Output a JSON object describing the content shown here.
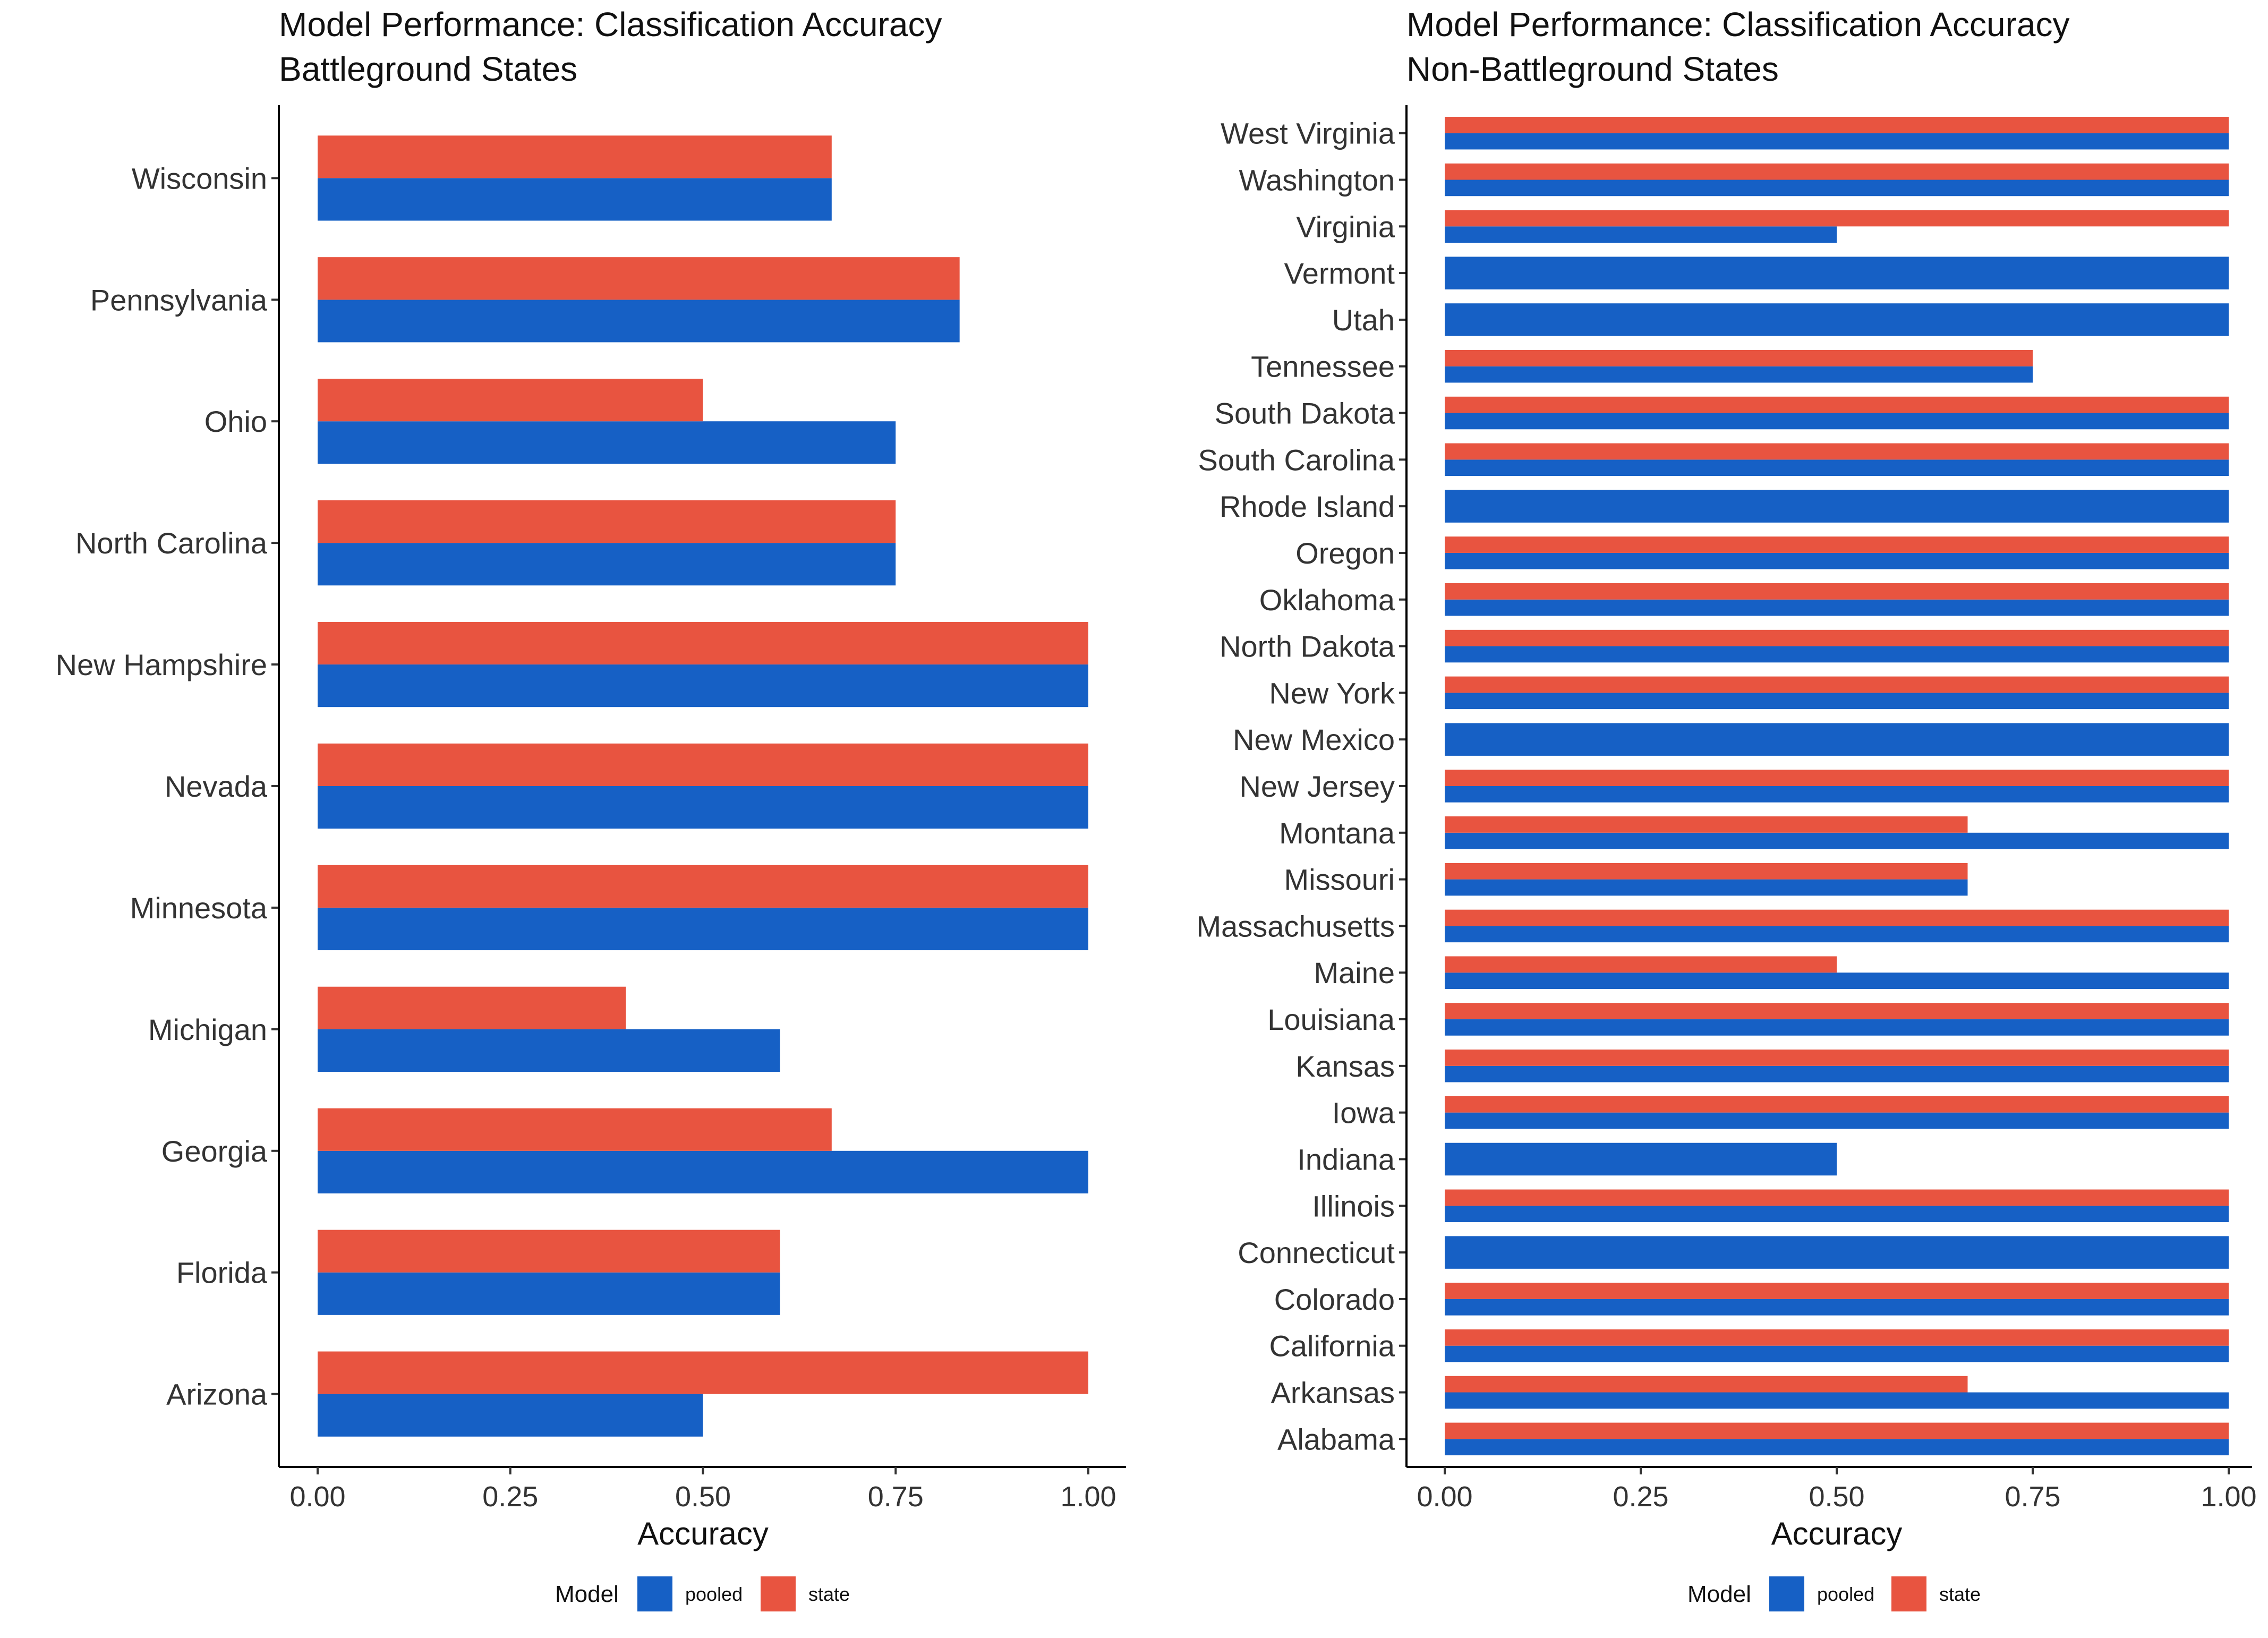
{
  "colors": {
    "pooled": "#1660c5",
    "state": "#e85440",
    "axis": "#000000",
    "tick_text": "#333333"
  },
  "chart_data": [
    {
      "type": "bar",
      "orientation": "horizontal",
      "title": "Model Performance: Classification Accuracy",
      "subtitle": "Battleground States",
      "xlabel": "Accuracy",
      "ylabel": "",
      "xlim": [
        0,
        1
      ],
      "xticks": [
        "0.00",
        "0.25",
        "0.50",
        "0.75",
        "1.00"
      ],
      "categories": [
        "Wisconsin",
        "Pennsylvania",
        "Ohio",
        "North Carolina",
        "New Hampshire",
        "Nevada",
        "Minnesota",
        "Michigan",
        "Georgia",
        "Florida",
        "Arizona"
      ],
      "series": [
        {
          "name": "pooled",
          "values": [
            0.667,
            0.833,
            0.75,
            0.75,
            1.0,
            1.0,
            1.0,
            0.6,
            1.0,
            0.6,
            0.5
          ]
        },
        {
          "name": "state",
          "values": [
            0.667,
            0.833,
            0.5,
            0.75,
            1.0,
            1.0,
            1.0,
            0.4,
            0.667,
            0.6,
            1.0
          ]
        }
      ],
      "legend": {
        "title": "Model",
        "position": "bottom",
        "labels": [
          "pooled",
          "state"
        ]
      },
      "grid": false
    },
    {
      "type": "bar",
      "orientation": "horizontal",
      "title": "Model Performance: Classification Accuracy",
      "subtitle": "Non-Battleground States",
      "xlabel": "Accuracy",
      "ylabel": "",
      "xlim": [
        0,
        1
      ],
      "xticks": [
        "0.00",
        "0.25",
        "0.50",
        "0.75",
        "1.00"
      ],
      "categories": [
        "West Virginia",
        "Washington",
        "Virginia",
        "Vermont",
        "Utah",
        "Tennessee",
        "South Dakota",
        "South Carolina",
        "Rhode Island",
        "Oregon",
        "Oklahoma",
        "North Dakota",
        "New York",
        "New Mexico",
        "New Jersey",
        "Montana",
        "Missouri",
        "Massachusetts",
        "Maine",
        "Louisiana",
        "Kansas",
        "Iowa",
        "Indiana",
        "Illinois",
        "Connecticut",
        "Colorado",
        "California",
        "Arkansas",
        "Alabama"
      ],
      "series": [
        {
          "name": "pooled",
          "values": [
            1.0,
            1.0,
            0.5,
            1.0,
            1.0,
            0.75,
            1.0,
            1.0,
            1.0,
            1.0,
            1.0,
            1.0,
            1.0,
            1.0,
            1.0,
            1.0,
            0.667,
            1.0,
            1.0,
            1.0,
            1.0,
            1.0,
            0.5,
            1.0,
            1.0,
            1.0,
            1.0,
            1.0,
            1.0
          ]
        },
        {
          "name": "state",
          "values": [
            1.0,
            1.0,
            1.0,
            null,
            null,
            0.75,
            1.0,
            1.0,
            null,
            1.0,
            1.0,
            1.0,
            1.0,
            null,
            1.0,
            0.667,
            0.667,
            1.0,
            0.5,
            1.0,
            1.0,
            1.0,
            null,
            1.0,
            null,
            1.0,
            1.0,
            0.667,
            1.0
          ]
        }
      ],
      "legend": {
        "title": "Model",
        "position": "bottom",
        "labels": [
          "pooled",
          "state"
        ]
      },
      "grid": false
    }
  ]
}
